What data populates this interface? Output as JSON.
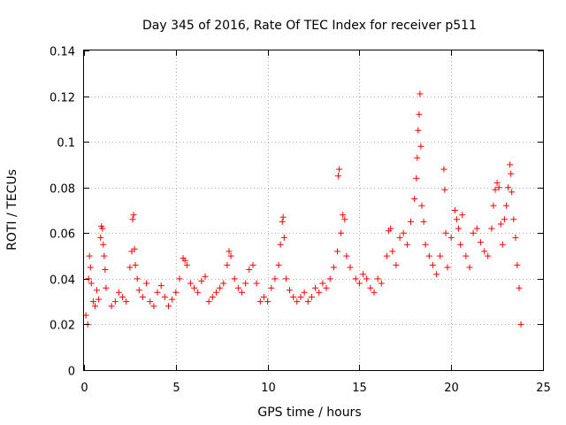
{
  "chart_data": {
    "type": "scatter",
    "title": "Day 345 of 2016, Rate Of TEC Index for receiver p511",
    "xlabel": "GPS time / hours",
    "ylabel": "ROTI / TECUs",
    "xlim": [
      0,
      25
    ],
    "ylim": [
      0,
      0.14
    ],
    "x_ticks": [
      0,
      5,
      10,
      15,
      20,
      25
    ],
    "y_ticks": [
      0,
      0.02,
      0.04,
      0.06,
      0.08,
      0.1,
      0.12,
      0.14
    ],
    "x_tick_labels": [
      "0",
      "5",
      "10",
      "15",
      "20",
      "25"
    ],
    "y_tick_labels": [
      "0",
      "0.02",
      "0.04",
      "0.06",
      "0.08",
      "0.1",
      "0.12",
      "0.14"
    ],
    "grid": true,
    "marker": "+",
    "color": "#ff0000",
    "series": [
      {
        "name": "p511 ROTI",
        "points": [
          [
            0.1,
            0.024
          ],
          [
            0.2,
            0.02
          ],
          [
            0.25,
            0.04
          ],
          [
            0.3,
            0.05
          ],
          [
            0.35,
            0.045
          ],
          [
            0.4,
            0.038
          ],
          [
            0.5,
            0.03
          ],
          [
            0.6,
            0.028
          ],
          [
            0.7,
            0.035
          ],
          [
            0.8,
            0.031
          ],
          [
            0.9,
            0.058
          ],
          [
            0.95,
            0.063
          ],
          [
            1.0,
            0.062
          ],
          [
            1.05,
            0.055
          ],
          [
            1.1,
            0.05
          ],
          [
            1.15,
            0.044
          ],
          [
            1.2,
            0.036
          ],
          [
            1.5,
            0.028
          ],
          [
            1.7,
            0.03
          ],
          [
            1.9,
            0.034
          ],
          [
            2.1,
            0.032
          ],
          [
            2.3,
            0.03
          ],
          [
            2.5,
            0.045
          ],
          [
            2.6,
            0.052
          ],
          [
            2.65,
            0.066
          ],
          [
            2.7,
            0.068
          ],
          [
            2.75,
            0.053
          ],
          [
            2.8,
            0.046
          ],
          [
            2.9,
            0.04
          ],
          [
            3.0,
            0.035
          ],
          [
            3.2,
            0.032
          ],
          [
            3.4,
            0.038
          ],
          [
            3.6,
            0.03
          ],
          [
            3.8,
            0.028
          ],
          [
            4.0,
            0.034
          ],
          [
            4.2,
            0.037
          ],
          [
            4.4,
            0.032
          ],
          [
            4.6,
            0.028
          ],
          [
            4.8,
            0.031
          ],
          [
            5.0,
            0.034
          ],
          [
            5.2,
            0.04
          ],
          [
            5.4,
            0.049
          ],
          [
            5.5,
            0.048
          ],
          [
            5.6,
            0.046
          ],
          [
            5.8,
            0.038
          ],
          [
            6.0,
            0.036
          ],
          [
            6.2,
            0.034
          ],
          [
            6.4,
            0.039
          ],
          [
            6.6,
            0.041
          ],
          [
            6.8,
            0.03
          ],
          [
            7.0,
            0.032
          ],
          [
            7.2,
            0.034
          ],
          [
            7.4,
            0.036
          ],
          [
            7.6,
            0.038
          ],
          [
            7.8,
            0.046
          ],
          [
            7.9,
            0.052
          ],
          [
            8.0,
            0.05
          ],
          [
            8.2,
            0.04
          ],
          [
            8.4,
            0.036
          ],
          [
            8.6,
            0.034
          ],
          [
            8.8,
            0.038
          ],
          [
            9.0,
            0.044
          ],
          [
            9.2,
            0.046
          ],
          [
            9.4,
            0.038
          ],
          [
            9.6,
            0.03
          ],
          [
            9.8,
            0.032
          ],
          [
            10.0,
            0.03
          ],
          [
            10.2,
            0.036
          ],
          [
            10.4,
            0.04
          ],
          [
            10.6,
            0.046
          ],
          [
            10.7,
            0.055
          ],
          [
            10.8,
            0.065
          ],
          [
            10.85,
            0.067
          ],
          [
            10.9,
            0.058
          ],
          [
            11.0,
            0.04
          ],
          [
            11.2,
            0.035
          ],
          [
            11.4,
            0.032
          ],
          [
            11.6,
            0.03
          ],
          [
            11.8,
            0.032
          ],
          [
            12.0,
            0.034
          ],
          [
            12.2,
            0.03
          ],
          [
            12.4,
            0.032
          ],
          [
            12.6,
            0.036
          ],
          [
            12.8,
            0.034
          ],
          [
            13.0,
            0.038
          ],
          [
            13.2,
            0.036
          ],
          [
            13.4,
            0.04
          ],
          [
            13.6,
            0.045
          ],
          [
            13.8,
            0.052
          ],
          [
            13.85,
            0.085
          ],
          [
            13.9,
            0.088
          ],
          [
            14.0,
            0.06
          ],
          [
            14.1,
            0.068
          ],
          [
            14.2,
            0.066
          ],
          [
            14.3,
            0.05
          ],
          [
            14.5,
            0.045
          ],
          [
            14.8,
            0.04
          ],
          [
            15.0,
            0.038
          ],
          [
            15.2,
            0.042
          ],
          [
            15.4,
            0.04
          ],
          [
            15.6,
            0.036
          ],
          [
            15.8,
            0.034
          ],
          [
            16.0,
            0.04
          ],
          [
            16.2,
            0.038
          ],
          [
            16.5,
            0.05
          ],
          [
            16.6,
            0.061
          ],
          [
            16.7,
            0.062
          ],
          [
            16.8,
            0.052
          ],
          [
            17.0,
            0.046
          ],
          [
            17.2,
            0.058
          ],
          [
            17.4,
            0.06
          ],
          [
            17.6,
            0.055
          ],
          [
            17.8,
            0.065
          ],
          [
            18.0,
            0.075
          ],
          [
            18.1,
            0.084
          ],
          [
            18.15,
            0.093
          ],
          [
            18.2,
            0.105
          ],
          [
            18.25,
            0.112
          ],
          [
            18.3,
            0.121
          ],
          [
            18.35,
            0.098
          ],
          [
            18.4,
            0.072
          ],
          [
            18.5,
            0.065
          ],
          [
            18.6,
            0.055
          ],
          [
            18.8,
            0.05
          ],
          [
            19.0,
            0.046
          ],
          [
            19.2,
            0.042
          ],
          [
            19.4,
            0.05
          ],
          [
            19.6,
            0.088
          ],
          [
            19.65,
            0.079
          ],
          [
            19.7,
            0.06
          ],
          [
            19.8,
            0.045
          ],
          [
            20.0,
            0.058
          ],
          [
            20.2,
            0.07
          ],
          [
            20.3,
            0.066
          ],
          [
            20.4,
            0.062
          ],
          [
            20.5,
            0.055
          ],
          [
            20.6,
            0.068
          ],
          [
            20.8,
            0.05
          ],
          [
            21.0,
            0.045
          ],
          [
            21.2,
            0.06
          ],
          [
            21.4,
            0.062
          ],
          [
            21.6,
            0.056
          ],
          [
            21.8,
            0.052
          ],
          [
            22.0,
            0.05
          ],
          [
            22.2,
            0.062
          ],
          [
            22.3,
            0.072
          ],
          [
            22.4,
            0.079
          ],
          [
            22.5,
            0.082
          ],
          [
            22.6,
            0.08
          ],
          [
            22.7,
            0.064
          ],
          [
            22.8,
            0.055
          ],
          [
            22.9,
            0.066
          ],
          [
            23.0,
            0.072
          ],
          [
            23.1,
            0.08
          ],
          [
            23.2,
            0.09
          ],
          [
            23.25,
            0.086
          ],
          [
            23.3,
            0.078
          ],
          [
            23.4,
            0.066
          ],
          [
            23.5,
            0.058
          ],
          [
            23.6,
            0.046
          ],
          [
            23.7,
            0.036
          ],
          [
            23.8,
            0.02
          ]
        ]
      }
    ]
  }
}
